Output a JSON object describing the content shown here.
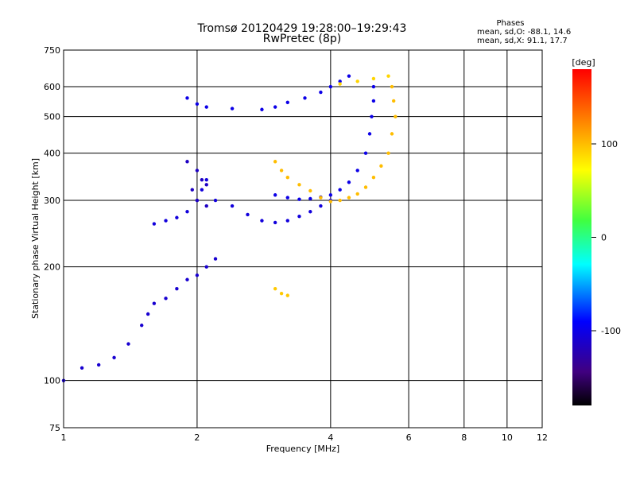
{
  "chart_data": {
    "type": "scatter",
    "title": "Tromsø 20120429 19:28:00–19:29:43",
    "subtitle": "RwPretec (8p)",
    "xlabel": "Frequency [MHz]",
    "ylabel": "Stationary phase Virtual Height [km]",
    "x_scale": "log",
    "y_scale": "log",
    "xlim": [
      1,
      12
    ],
    "ylim": [
      75,
      750
    ],
    "x_ticks": [
      1,
      2,
      4,
      6,
      8,
      10,
      12
    ],
    "y_ticks": [
      75,
      100,
      200,
      300,
      400,
      500,
      600,
      750
    ],
    "grid": true,
    "colorbar": {
      "label": "[deg]",
      "ticks": [
        100,
        0,
        -100
      ],
      "range": [
        -180,
        180
      ]
    },
    "phase_stats": {
      "heading": "Phases",
      "line1": "mean, sd,O: -88.1, 14.6",
      "line2": "mean, sd,X:  91.1, 17.7"
    },
    "traces": [
      {
        "name": "",
        "phase": -110,
        "points": [
          [
            1.0,
            100
          ],
          [
            1.1,
            108
          ],
          [
            1.2,
            110
          ],
          [
            1.3,
            115
          ],
          [
            1.4,
            125
          ],
          [
            1.5,
            140
          ],
          [
            1.55,
            150
          ],
          [
            1.6,
            160
          ],
          [
            1.7,
            165
          ],
          [
            1.8,
            175
          ],
          [
            1.9,
            185
          ],
          [
            2.0,
            190
          ],
          [
            2.1,
            200
          ],
          [
            2.2,
            210
          ]
        ]
      },
      {
        "name": "",
        "phase": -105,
        "points": [
          [
            1.6,
            260
          ],
          [
            1.7,
            265
          ],
          [
            1.8,
            270
          ],
          [
            1.9,
            280
          ],
          [
            2.0,
            300
          ],
          [
            2.05,
            320
          ],
          [
            2.1,
            340
          ],
          [
            2.2,
            300
          ],
          [
            2.4,
            290
          ],
          [
            2.6,
            275
          ],
          [
            2.8,
            265
          ],
          [
            3.0,
            262
          ],
          [
            3.2,
            265
          ],
          [
            3.4,
            272
          ],
          [
            3.6,
            280
          ],
          [
            3.8,
            290
          ],
          [
            4.0,
            300
          ]
        ]
      },
      {
        "name": "",
        "phase": -100,
        "points": [
          [
            3.0,
            310
          ],
          [
            3.2,
            305
          ],
          [
            3.4,
            302
          ],
          [
            3.6,
            303
          ],
          [
            3.8,
            306
          ],
          [
            4.0,
            310
          ],
          [
            4.2,
            320
          ],
          [
            4.4,
            335
          ],
          [
            4.6,
            360
          ],
          [
            4.8,
            400
          ],
          [
            4.9,
            450
          ],
          [
            4.95,
            500
          ],
          [
            5.0,
            550
          ],
          [
            5.0,
            600
          ]
        ]
      },
      {
        "name": "",
        "phase": -100,
        "points": [
          [
            1.9,
            560
          ],
          [
            2.0,
            540
          ],
          [
            2.1,
            530
          ],
          [
            2.4,
            525
          ],
          [
            2.8,
            522
          ],
          [
            3.0,
            530
          ],
          [
            3.2,
            545
          ],
          [
            3.5,
            560
          ],
          [
            3.8,
            580
          ],
          [
            4.0,
            600
          ],
          [
            4.2,
            620
          ],
          [
            4.4,
            640
          ]
        ]
      },
      {
        "name": "",
        "phase": -115,
        "points": [
          [
            1.9,
            380
          ],
          [
            2.0,
            360
          ],
          [
            2.05,
            340
          ],
          [
            2.1,
            330
          ],
          [
            1.95,
            320
          ],
          [
            2.0,
            300
          ],
          [
            2.1,
            290
          ]
        ]
      },
      {
        "name": "",
        "phase": 100,
        "points": [
          [
            3.0,
            380
          ],
          [
            3.1,
            360
          ],
          [
            3.2,
            345
          ],
          [
            3.4,
            330
          ],
          [
            3.6,
            318
          ],
          [
            3.8,
            305
          ],
          [
            4.0,
            298
          ],
          [
            4.2,
            300
          ],
          [
            4.4,
            305
          ],
          [
            4.6,
            312
          ],
          [
            4.8,
            325
          ],
          [
            5.0,
            345
          ],
          [
            5.2,
            370
          ],
          [
            5.4,
            400
          ],
          [
            5.5,
            450
          ],
          [
            5.6,
            500
          ],
          [
            5.55,
            550
          ],
          [
            5.5,
            600
          ]
        ]
      },
      {
        "name": "",
        "phase": 95,
        "points": [
          [
            3.0,
            175
          ],
          [
            3.1,
            170
          ],
          [
            3.2,
            168
          ]
        ]
      },
      {
        "name": "",
        "phase": 90,
        "points": [
          [
            4.2,
            610
          ],
          [
            4.6,
            620
          ],
          [
            5.0,
            630
          ],
          [
            5.4,
            640
          ]
        ]
      }
    ]
  }
}
